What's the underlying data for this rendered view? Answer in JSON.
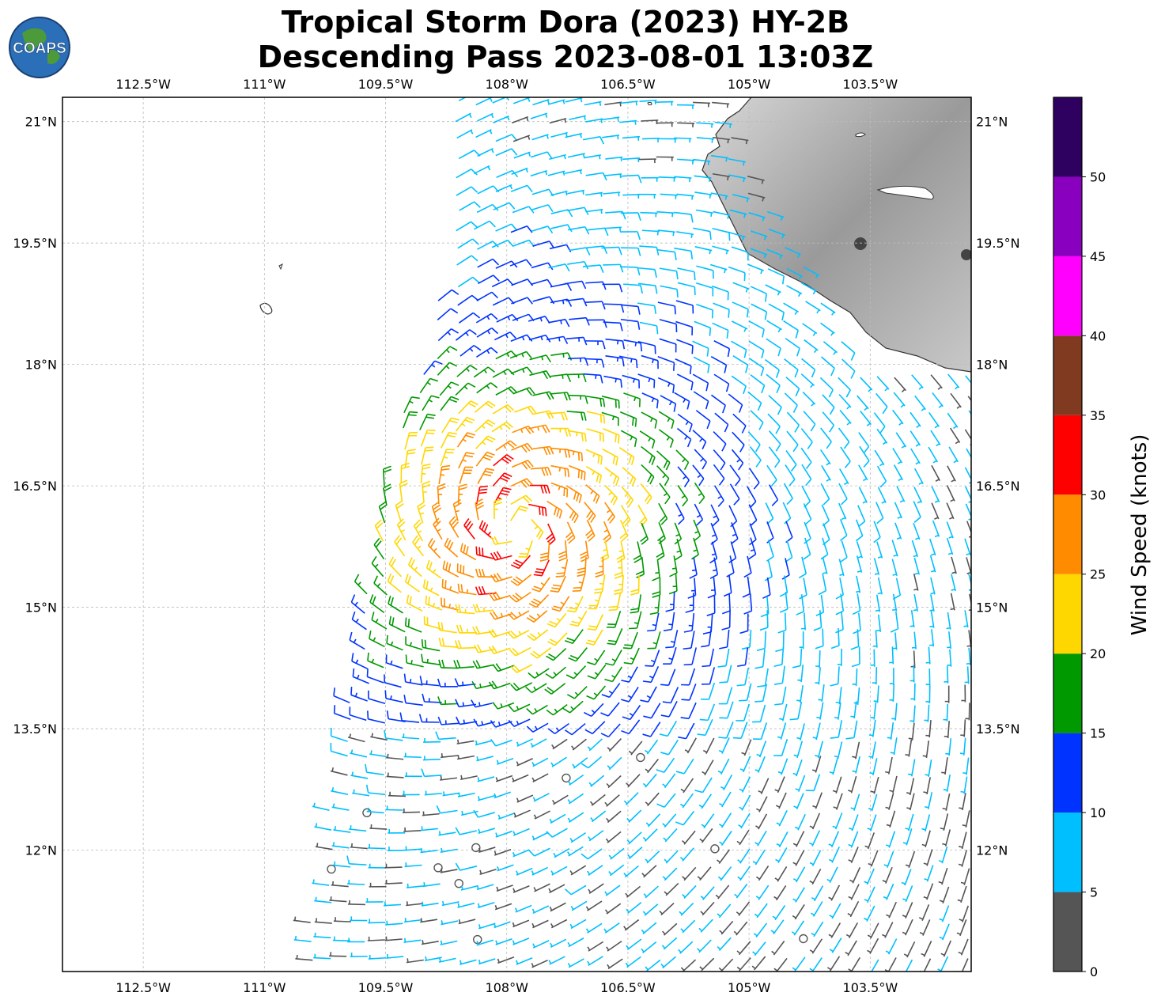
{
  "title": {
    "line1": "Tropical Storm Dora (2023) HY-2B",
    "line2": "Descending Pass 2023-08-01 13:03Z"
  },
  "logo": {
    "text": "COAPS"
  },
  "chart_data": {
    "type": "wind_barb_map",
    "lon_range": [
      -113.5,
      -102.25
    ],
    "lat_range": [
      10.5,
      21.3
    ],
    "lon_ticks": [
      "112.5°W",
      "111°W",
      "109.5°W",
      "108°W",
      "106.5°W",
      "105°W",
      "103.5°W"
    ],
    "lon_tick_values": [
      -112.5,
      -111,
      -109.5,
      -108,
      -106.5,
      -105,
      -103.5
    ],
    "lat_ticks": [
      "21°N",
      "19.5°N",
      "18°N",
      "16.5°N",
      "15°N",
      "13.5°N",
      "12°N"
    ],
    "lat_tick_values": [
      21,
      19.5,
      18,
      16.5,
      15,
      13.5,
      12
    ],
    "grid": true,
    "storm_center": {
      "lon": -107.9,
      "lat": 16.0
    },
    "colorbar": {
      "label": "Wind Speed (knots)",
      "ticks": [
        "0",
        "5",
        "10",
        "15",
        "20",
        "25",
        "30",
        "35",
        "40",
        "45",
        "50"
      ],
      "bounds": [
        0,
        5,
        10,
        15,
        20,
        25,
        30,
        35,
        40,
        45,
        50,
        55
      ],
      "colors": [
        "#555555",
        "#00bfff",
        "#0033ff",
        "#009900",
        "#ffd700",
        "#ff8c00",
        "#ff0000",
        "#803a20",
        "#ff00ff",
        "#8a00bf",
        "#2e0060"
      ]
    }
  }
}
